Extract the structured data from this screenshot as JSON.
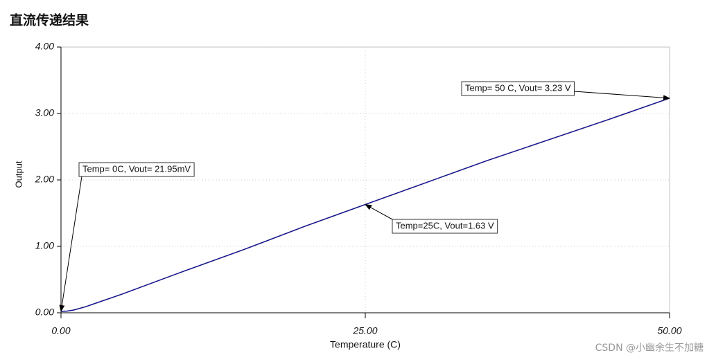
{
  "page_title": "直流传递结果",
  "chart_data": {
    "type": "line",
    "x_label": "Temperature (C)",
    "y_label": "Output",
    "x": [
      0,
      0.5,
      1,
      2,
      5,
      10,
      15,
      20,
      25,
      30,
      35,
      40,
      45,
      50
    ],
    "series": [
      {
        "name": "Output",
        "color": "#1a1a8c",
        "values": [
          0.022,
          0.025,
          0.04,
          0.09,
          0.28,
          0.62,
          0.95,
          1.3,
          1.63,
          1.96,
          2.29,
          2.6,
          2.91,
          3.23
        ]
      }
    ],
    "xlim": [
      0,
      50
    ],
    "ylim": [
      0,
      4
    ],
    "xticks": [
      {
        "value": 0,
        "label": "0.00"
      },
      {
        "value": 25,
        "label": "25.00"
      },
      {
        "value": 50,
        "label": "50.00"
      }
    ],
    "yticks": [
      {
        "value": 0,
        "label": "0.00"
      },
      {
        "value": 1,
        "label": "1.00"
      },
      {
        "value": 2,
        "label": "2.00"
      },
      {
        "value": 3,
        "label": "3.00"
      },
      {
        "value": 4,
        "label": "4.00"
      }
    ],
    "grid": true,
    "annotations": [
      {
        "text": "Temp= 0C, Vout= 21.95mV",
        "x": 0,
        "y": 0.02195
      },
      {
        "text": "Temp=25C, Vout=1.63 V",
        "x": 25,
        "y": 1.63
      },
      {
        "text": "Temp= 50 C, Vout= 3.23 V",
        "x": 50,
        "y": 3.23
      }
    ]
  },
  "watermark": "CSDN @小幽余生不加糖"
}
